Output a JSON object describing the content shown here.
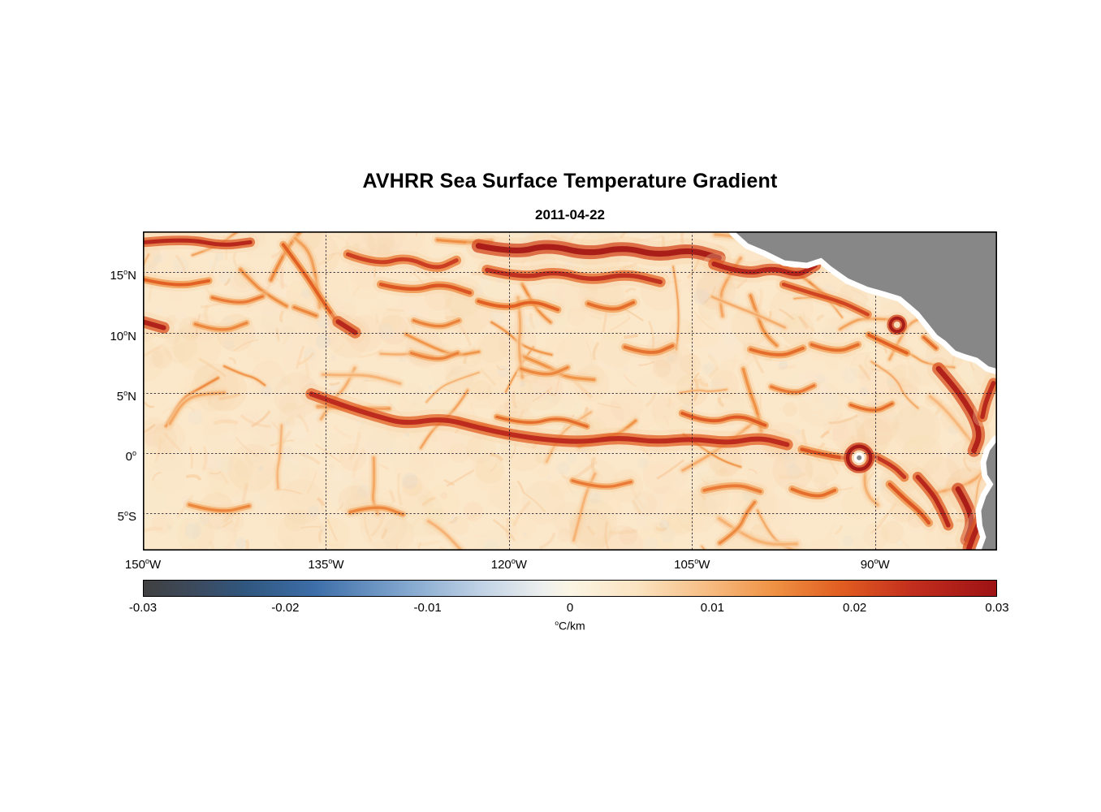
{
  "chart_data": {
    "type": "heatmap",
    "title": "AVHRR Sea Surface Temperature Gradient",
    "subtitle": "2011-04-22",
    "colorbar": {
      "min": -0.03,
      "max": 0.03,
      "label": "°C/km",
      "ticks": [
        {
          "label": "-0.03",
          "value": -0.03
        },
        {
          "label": "-0.02",
          "value": -0.02
        },
        {
          "label": "-0.01",
          "value": -0.01
        },
        {
          "label": "0",
          "value": 0
        },
        {
          "label": "0.01",
          "value": 0.01
        },
        {
          "label": "0.02",
          "value": 0.02
        },
        {
          "label": "0.03",
          "value": 0.03
        }
      ],
      "stops": [
        [
          0,
          "#404040"
        ],
        [
          0.06,
          "#3c4a5e"
        ],
        [
          0.12,
          "#30577f"
        ],
        [
          0.2,
          "#3d6ea8"
        ],
        [
          0.3,
          "#7da3cc"
        ],
        [
          0.4,
          "#c3d4e6"
        ],
        [
          0.47,
          "#eef0ee"
        ],
        [
          0.5,
          "#fbf5e4"
        ],
        [
          0.58,
          "#fbe3c0"
        ],
        [
          0.66,
          "#f7bd84"
        ],
        [
          0.74,
          "#ef9143"
        ],
        [
          0.82,
          "#e05c20"
        ],
        [
          0.9,
          "#c32f1e"
        ],
        [
          1,
          "#9e1214"
        ]
      ]
    },
    "x_axis": {
      "min": -150,
      "max": -80,
      "ticks": [
        {
          "label": "150°W",
          "lon": -150
        },
        {
          "label": "135°W",
          "lon": -135
        },
        {
          "label": "120°W",
          "lon": -120
        },
        {
          "label": "105°W",
          "lon": -105
        },
        {
          "label": "90°W",
          "lon": -90
        }
      ]
    },
    "y_axis": {
      "min": -8.1,
      "max": 18.4,
      "ticks": [
        {
          "label": "15°N",
          "lat": 15
        },
        {
          "label": "10°N",
          "lat": 10
        },
        {
          "label": "5°N",
          "lat": 5
        },
        {
          "label": "0°",
          "lat": 0
        },
        {
          "label": "5°S",
          "lat": -5
        }
      ]
    },
    "grid": {
      "lons": [
        -135,
        -120,
        -105,
        -90
      ],
      "lats": [
        15,
        10,
        5,
        0,
        -5
      ]
    },
    "land": {
      "color": "#878787",
      "coast_gap_color": "#ffffff",
      "polygons": [
        [
          [
            -101.5,
            18.4
          ],
          [
            -80,
            18.4
          ],
          [
            -80,
            7.0
          ],
          [
            -80.7,
            7.2
          ],
          [
            -81.6,
            7.9
          ],
          [
            -82.6,
            8.2
          ],
          [
            -83.4,
            8.5
          ],
          [
            -84.2,
            9.3
          ],
          [
            -84.9,
            9.8
          ],
          [
            -85.6,
            10.7
          ],
          [
            -86.4,
            11.7
          ],
          [
            -87.2,
            12.4
          ],
          [
            -87.9,
            13.0
          ],
          [
            -89.2,
            13.4
          ],
          [
            -90.6,
            13.8
          ],
          [
            -92.2,
            14.5
          ],
          [
            -93.6,
            15.5
          ],
          [
            -94.4,
            16.2
          ],
          [
            -95.6,
            15.8
          ],
          [
            -97.4,
            16.0
          ],
          [
            -99.0,
            16.8
          ],
          [
            -100.4,
            17.4
          ]
        ],
        [
          [
            -80,
            1.0
          ],
          [
            -80.6,
            0.2
          ],
          [
            -80.9,
            -0.8
          ],
          [
            -80.8,
            -1.8
          ],
          [
            -80.3,
            -2.6
          ],
          [
            -80.9,
            -3.6
          ],
          [
            -81.3,
            -4.8
          ],
          [
            -81.2,
            -6.0
          ],
          [
            -80.9,
            -7.0
          ],
          [
            -81.3,
            -8.1
          ],
          [
            -80,
            -8.1
          ]
        ]
      ]
    },
    "galapagos": {
      "lon": -91.3,
      "lat": -0.4
    },
    "rings": [
      {
        "lon": -91.3,
        "lat": -0.4,
        "r": 0.95,
        "w": 8,
        "i": 0.97
      },
      {
        "lon": -88.2,
        "lat": 10.65,
        "r": 0.55,
        "w": 7,
        "i": 0.95
      }
    ],
    "fronts": [
      {
        "pts": [
          [
            -149.8,
            17.5
          ],
          [
            -146.5,
            17.8
          ],
          [
            -143.5,
            17.2
          ],
          [
            -141.2,
            17.5
          ]
        ],
        "w": 9,
        "i": 0.85
      },
      {
        "pts": [
          [
            -149.9,
            14.4
          ],
          [
            -147.3,
            13.8
          ],
          [
            -144.6,
            14.3
          ]
        ],
        "w": 7,
        "i": 0.55
      },
      {
        "pts": [
          [
            -150,
            10.9
          ],
          [
            -148.3,
            10.4
          ]
        ],
        "w": 11,
        "i": 0.9
      },
      {
        "pts": [
          [
            -145.7,
            10.7
          ],
          [
            -143.6,
            10.0
          ],
          [
            -141.5,
            10.8
          ]
        ],
        "w": 6,
        "i": 0.4
      },
      {
        "pts": [
          [
            -138.5,
            17.3
          ],
          [
            -136.8,
            15.0
          ],
          [
            -135.4,
            12.8
          ],
          [
            -134.3,
            11.2
          ]
        ],
        "w": 7,
        "i": 0.55
      },
      {
        "pts": [
          [
            -134.0,
            10.9
          ],
          [
            -132.6,
            10.0
          ]
        ],
        "w": 11,
        "i": 0.85
      },
      {
        "pts": [
          [
            -133.2,
            16.5
          ],
          [
            -130.8,
            15.6
          ],
          [
            -128.4,
            16.3
          ],
          [
            -126.0,
            15.2
          ],
          [
            -124.3,
            16.0
          ]
        ],
        "w": 9,
        "i": 0.7
      },
      {
        "pts": [
          [
            -130.5,
            14.0
          ],
          [
            -128.0,
            13.4
          ],
          [
            -125.6,
            14.1
          ],
          [
            -123.2,
            13.3
          ]
        ],
        "w": 8,
        "i": 0.6
      },
      {
        "pts": [
          [
            -122.5,
            17.2
          ],
          [
            -119.5,
            16.6
          ],
          [
            -116.8,
            17.3
          ],
          [
            -113.5,
            16.5
          ],
          [
            -110.6,
            17.1
          ],
          [
            -107.8,
            16.4
          ],
          [
            -105.2,
            16.9
          ],
          [
            -102.8,
            16.2
          ]
        ],
        "w": 13,
        "i": 0.95
      },
      {
        "pts": [
          [
            -121.8,
            15.2
          ],
          [
            -118.9,
            14.5
          ],
          [
            -116.2,
            15.1
          ],
          [
            -113.3,
            14.3
          ],
          [
            -110.4,
            14.9
          ],
          [
            -107.6,
            14.2
          ]
        ],
        "w": 10,
        "i": 0.78
      },
      {
        "pts": [
          [
            -103.2,
            15.7
          ],
          [
            -100.6,
            14.8
          ],
          [
            -98.4,
            15.4
          ],
          [
            -96.3,
            14.7
          ],
          [
            -94.9,
            15.6
          ]
        ],
        "w": 11,
        "i": 0.88
      },
      {
        "pts": [
          [
            -97.5,
            14.0
          ],
          [
            -95.0,
            13.2
          ],
          [
            -92.6,
            12.5
          ],
          [
            -90.6,
            11.5
          ]
        ],
        "w": 8,
        "i": 0.68
      },
      {
        "pts": [
          [
            -144.3,
            12.9
          ],
          [
            -142.2,
            12.3
          ],
          [
            -140.2,
            13.0
          ]
        ],
        "w": 6,
        "i": 0.45
      },
      {
        "pts": [
          [
            -122.5,
            12.6
          ],
          [
            -120.3,
            11.9
          ],
          [
            -118.2,
            12.7
          ],
          [
            -116.0,
            11.9
          ]
        ],
        "w": 7,
        "i": 0.55
      },
      {
        "pts": [
          [
            -113.5,
            12.4
          ],
          [
            -111.6,
            11.7
          ],
          [
            -109.8,
            12.5
          ]
        ],
        "w": 7,
        "i": 0.5
      },
      {
        "pts": [
          [
            -136.2,
            4.9
          ],
          [
            -133.5,
            3.9
          ],
          [
            -131.0,
            3.1
          ],
          [
            -128.5,
            2.4
          ],
          [
            -125.5,
            2.9
          ],
          [
            -122.5,
            2.1
          ],
          [
            -119.8,
            1.5
          ],
          [
            -117.0,
            1.1
          ],
          [
            -114.0,
            0.9
          ],
          [
            -111.0,
            1.3
          ],
          [
            -108.0,
            0.9
          ],
          [
            -105.0,
            1.2
          ],
          [
            -102.0,
            0.8
          ],
          [
            -99.5,
            1.3
          ],
          [
            -97.2,
            0.7
          ]
        ],
        "w": 11,
        "i": 0.82
      },
      {
        "pts": [
          [
            -121.0,
            3.0
          ],
          [
            -118.5,
            2.3
          ],
          [
            -116.0,
            3.0
          ],
          [
            -113.6,
            2.2
          ]
        ],
        "w": 6,
        "i": 0.5
      },
      {
        "pts": [
          [
            -105.8,
            3.3
          ],
          [
            -103.5,
            2.4
          ],
          [
            -101.2,
            3.2
          ],
          [
            -99.0,
            2.3
          ]
        ],
        "w": 7,
        "i": 0.58
      },
      {
        "pts": [
          [
            -96.0,
            0.3
          ],
          [
            -94.0,
            -0.2
          ],
          [
            -92.6,
            -0.4
          ]
        ],
        "w": 8,
        "i": 0.6
      },
      {
        "pts": [
          [
            -90.0,
            -0.3
          ],
          [
            -88.6,
            -1.0
          ],
          [
            -87.6,
            -2.0
          ]
        ],
        "w": 9,
        "i": 0.75
      },
      {
        "pts": [
          [
            -88.8,
            -2.6
          ],
          [
            -87.6,
            -3.8
          ],
          [
            -86.4,
            -4.8
          ],
          [
            -85.6,
            -5.8
          ]
        ],
        "w": 8,
        "i": 0.6
      },
      {
        "pts": [
          [
            -86.5,
            -2.0
          ],
          [
            -85.4,
            -3.2
          ],
          [
            -84.6,
            -4.6
          ],
          [
            -84.0,
            -6.0
          ]
        ],
        "w": 10,
        "i": 0.85
      },
      {
        "pts": [
          [
            -83.2,
            -3.0
          ],
          [
            -82.4,
            -4.4
          ],
          [
            -82.0,
            -5.8
          ],
          [
            -82.5,
            -7.2
          ]
        ],
        "w": 12,
        "i": 0.95
      },
      {
        "pts": [
          [
            -81.0,
            -4.8
          ],
          [
            -81.7,
            -6.3
          ],
          [
            -82.3,
            -7.9
          ]
        ],
        "w": 12,
        "i": 0.9
      },
      {
        "pts": [
          [
            -84.8,
            7.0
          ],
          [
            -83.6,
            5.6
          ],
          [
            -82.6,
            4.2
          ],
          [
            -81.8,
            2.8
          ],
          [
            -81.4,
            1.4
          ],
          [
            -81.9,
            0.2
          ]
        ],
        "w": 12,
        "i": 0.9
      },
      {
        "pts": [
          [
            -80.3,
            5.8
          ],
          [
            -80.9,
            4.4
          ],
          [
            -81.2,
            3.0
          ]
        ],
        "w": 10,
        "i": 0.85
      },
      {
        "pts": [
          [
            -90.5,
            9.8
          ],
          [
            -88.9,
            9.0
          ],
          [
            -87.4,
            8.3
          ]
        ],
        "w": 7,
        "i": 0.55
      },
      {
        "pts": [
          [
            -95.2,
            9.0
          ],
          [
            -93.2,
            8.3
          ],
          [
            -91.4,
            9.0
          ]
        ],
        "w": 7,
        "i": 0.5
      },
      {
        "pts": [
          [
            -100.2,
            8.6
          ],
          [
            -98.0,
            7.9
          ],
          [
            -95.9,
            8.7
          ]
        ],
        "w": 7,
        "i": 0.5
      },
      {
        "pts": [
          [
            -128.0,
            8.3
          ],
          [
            -126.0,
            7.6
          ],
          [
            -124.2,
            8.3
          ]
        ],
        "w": 6,
        "i": 0.42
      },
      {
        "pts": [
          [
            -119.0,
            7.0
          ],
          [
            -117.0,
            6.3
          ],
          [
            -115.2,
            7.1
          ]
        ],
        "w": 6,
        "i": 0.4
      },
      {
        "pts": [
          [
            -110.5,
            8.8
          ],
          [
            -108.4,
            8.1
          ],
          [
            -106.6,
            8.9
          ]
        ],
        "w": 7,
        "i": 0.48
      },
      {
        "pts": [
          [
            -146.2,
            -4.3
          ],
          [
            -143.7,
            -5.0
          ],
          [
            -141.3,
            -4.4
          ]
        ],
        "w": 6,
        "i": 0.4
      },
      {
        "pts": [
          [
            -133.0,
            -4.9
          ],
          [
            -130.8,
            -4.3
          ],
          [
            -128.7,
            -5.1
          ]
        ],
        "w": 6,
        "i": 0.4
      },
      {
        "pts": [
          [
            -114.8,
            -2.3
          ],
          [
            -112.4,
            -3.0
          ],
          [
            -110.0,
            -2.4
          ]
        ],
        "w": 6,
        "i": 0.45
      },
      {
        "pts": [
          [
            -104.0,
            -3.1
          ],
          [
            -101.6,
            -2.5
          ],
          [
            -99.4,
            -3.2
          ]
        ],
        "w": 7,
        "i": 0.45
      },
      {
        "pts": [
          [
            -96.8,
            -3.0
          ],
          [
            -94.9,
            -3.8
          ],
          [
            -93.3,
            -3.1
          ]
        ],
        "w": 7,
        "i": 0.5
      },
      {
        "pts": [
          [
            -137.6,
            12.1
          ],
          [
            -135.8,
            11.4
          ]
        ],
        "w": 6,
        "i": 0.4
      },
      {
        "pts": [
          [
            -127.8,
            11.0
          ],
          [
            -125.9,
            10.3
          ],
          [
            -124.1,
            11.0
          ]
        ],
        "w": 6,
        "i": 0.42
      },
      {
        "pts": [
          [
            -98.5,
            5.5
          ],
          [
            -96.7,
            4.8
          ],
          [
            -95.0,
            5.6
          ]
        ],
        "w": 6,
        "i": 0.45
      },
      {
        "pts": [
          [
            -92.0,
            4.0
          ],
          [
            -90.2,
            3.3
          ],
          [
            -88.6,
            4.1
          ]
        ],
        "w": 6,
        "i": 0.5
      },
      {
        "pts": [
          [
            -86.0,
            9.6
          ],
          [
            -85.0,
            8.7
          ]
        ],
        "w": 6,
        "i": 0.5
      }
    ],
    "texture_seed": 42
  }
}
